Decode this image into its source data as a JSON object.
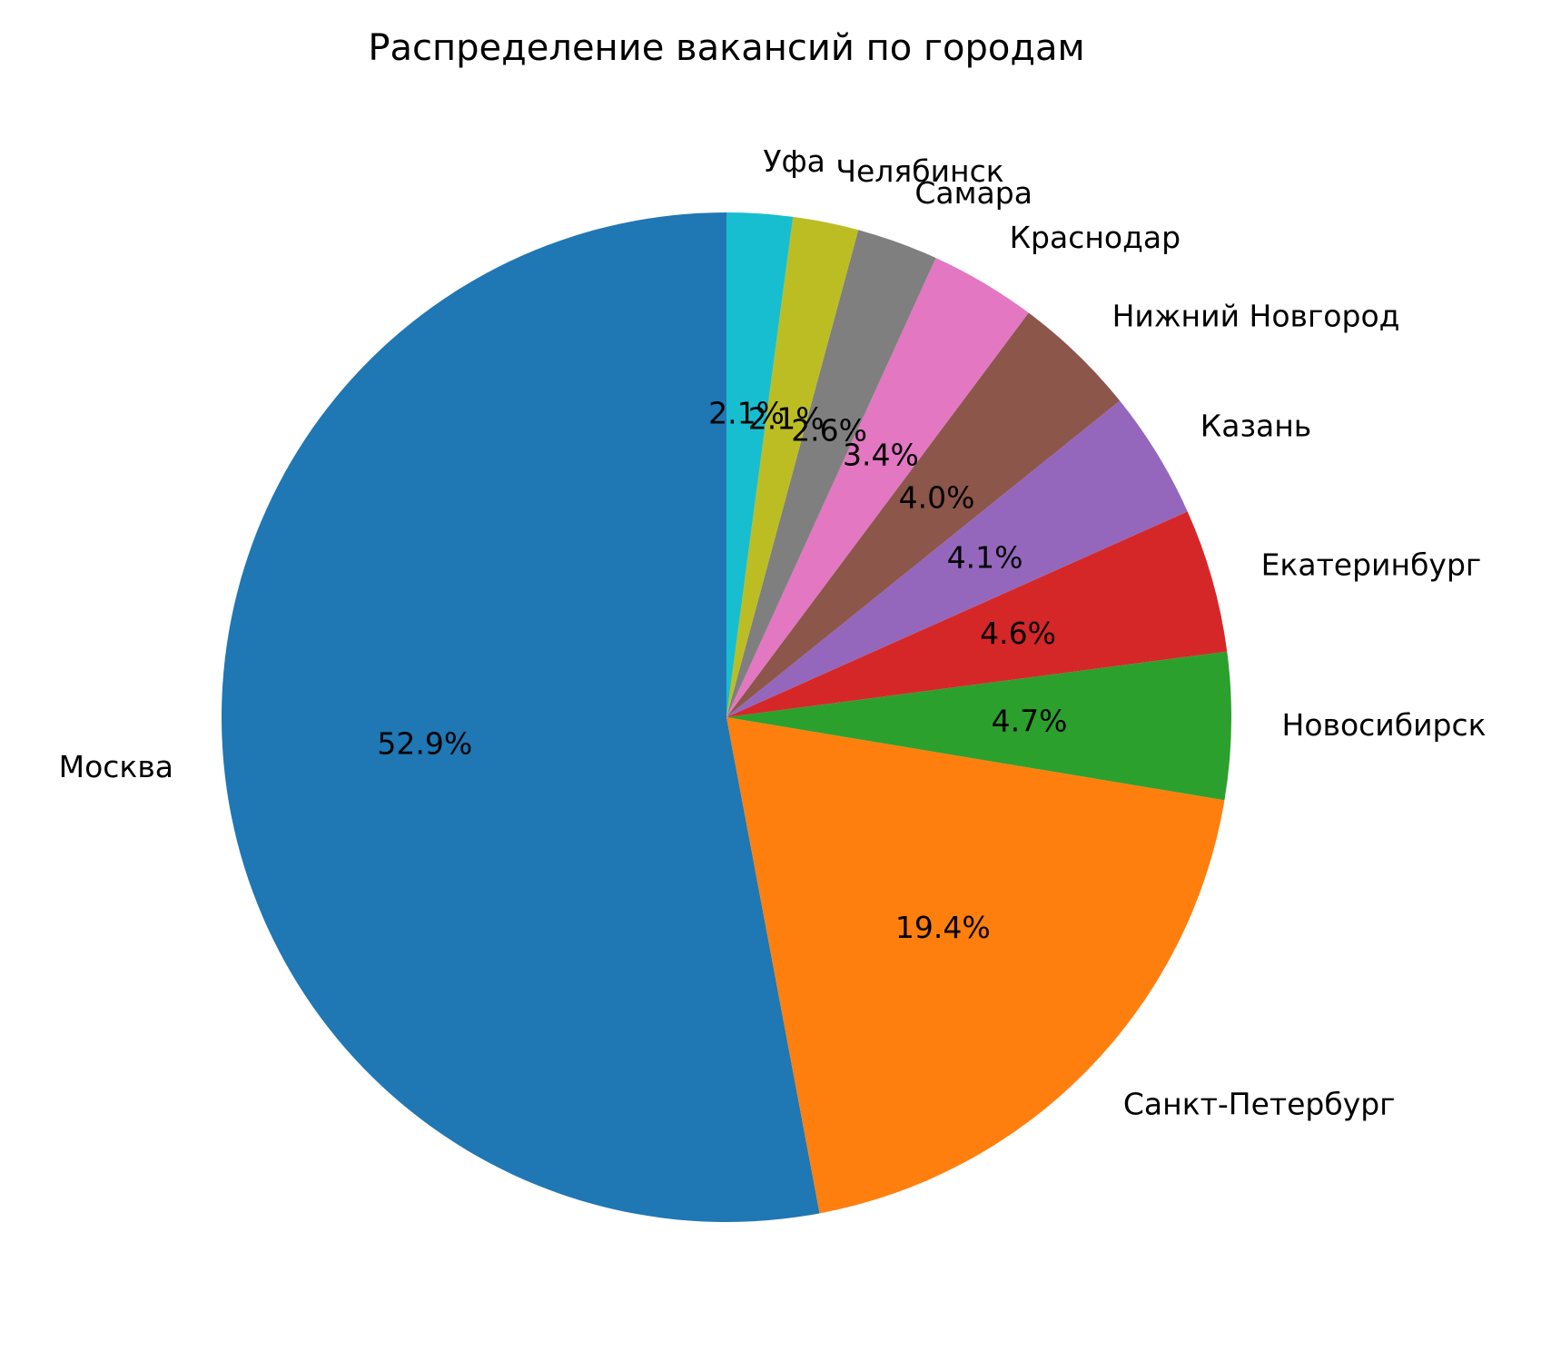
{
  "chart_data": {
    "type": "pie",
    "title": "Распределение вакансий по городам",
    "start_angle_deg": 90,
    "direction": "counterclockwise",
    "slices": [
      {
        "label": "Москва",
        "value": 52.9,
        "pct_text": "52.9%",
        "color": "#1f77b4"
      },
      {
        "label": "Санкт-Петербург",
        "value": 19.4,
        "pct_text": "19.4%",
        "color": "#ff7f0e"
      },
      {
        "label": "Новосибирск",
        "value": 4.7,
        "pct_text": "4.7%",
        "color": "#2ca02c"
      },
      {
        "label": "Екатеринбург",
        "value": 4.6,
        "pct_text": "4.6%",
        "color": "#d62728"
      },
      {
        "label": "Казань",
        "value": 4.1,
        "pct_text": "4.1%",
        "color": "#9467bd"
      },
      {
        "label": "Нижний Новгород",
        "value": 4.0,
        "pct_text": "4.0%",
        "color": "#8c564b"
      },
      {
        "label": "Краснодар",
        "value": 3.4,
        "pct_text": "3.4%",
        "color": "#e377c2"
      },
      {
        "label": "Самара",
        "value": 2.6,
        "pct_text": "2.6%",
        "color": "#7f7f7f"
      },
      {
        "label": "Челябинск",
        "value": 2.1,
        "pct_text": "2.1%",
        "color": "#bcbd22"
      },
      {
        "label": "Уфа",
        "value": 2.1,
        "pct_text": "2.1%",
        "color": "#17becf"
      }
    ]
  }
}
